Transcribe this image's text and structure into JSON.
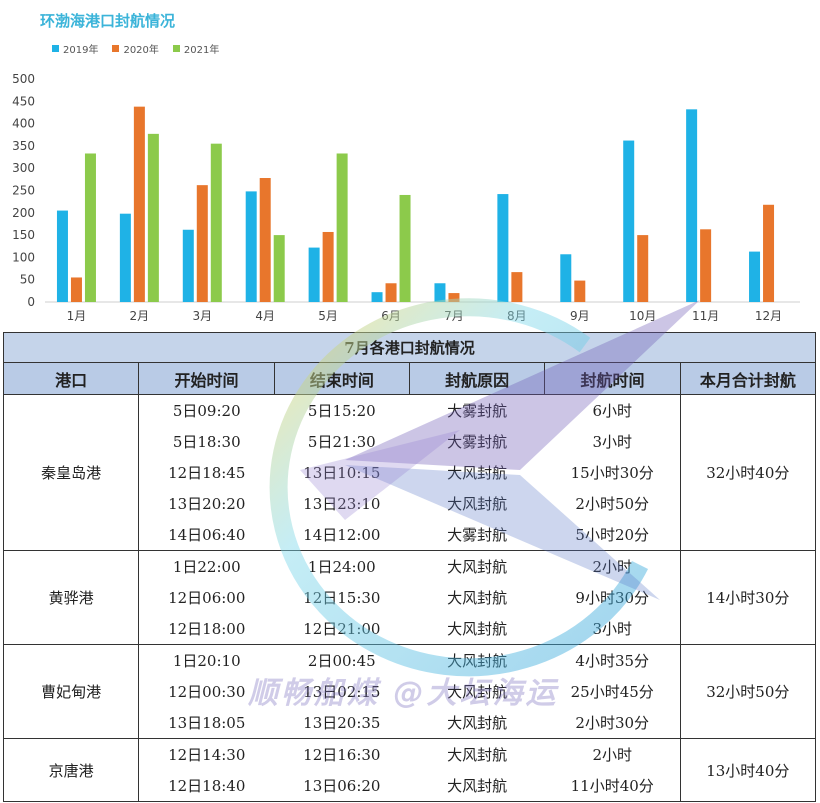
{
  "chart_data": {
    "type": "bar",
    "title": "环渤海港口封航情况",
    "categories": [
      "1月",
      "2月",
      "3月",
      "4月",
      "5月",
      "6月",
      "7月",
      "8月",
      "9月",
      "10月",
      "11月",
      "12月"
    ],
    "series": [
      {
        "name": "2019年",
        "color": "#1fb2e6",
        "values": [
          205,
          198,
          162,
          248,
          122,
          22,
          42,
          242,
          107,
          362,
          432,
          113
        ]
      },
      {
        "name": "2020年",
        "color": "#e8762c",
        "values": [
          55,
          438,
          262,
          278,
          157,
          42,
          20,
          67,
          48,
          150,
          163,
          218
        ]
      },
      {
        "name": "2021年",
        "color": "#8cca4b",
        "values": [
          333,
          377,
          355,
          150,
          333,
          240,
          null,
          null,
          null,
          null,
          null,
          null
        ]
      }
    ],
    "ylim": [
      0,
      500
    ],
    "yticks": [
      0,
      50,
      100,
      150,
      200,
      250,
      300,
      350,
      400,
      450,
      500
    ],
    "legend": "top-left",
    "xlabel": "",
    "ylabel": ""
  },
  "table": {
    "title": "7月各港口封航情况",
    "headers": [
      "港口",
      "开始时间",
      "结束时间",
      "封航原因",
      "封航时间",
      "本月合计封航"
    ],
    "groups": [
      {
        "port": "秦皇岛港",
        "total": "32小时40分",
        "rows": [
          [
            "5日09:20",
            "5日15:20",
            "大雾封航",
            "6小时"
          ],
          [
            "5日18:30",
            "5日21:30",
            "大雾封航",
            "3小时"
          ],
          [
            "12日18:45",
            "13日10:15",
            "大风封航",
            "15小时30分"
          ],
          [
            "13日20:20",
            "13日23:10",
            "大风封航",
            "2小时50分"
          ],
          [
            "14日06:40",
            "14日12:00",
            "大雾封航",
            "5小时20分"
          ]
        ]
      },
      {
        "port": "黄骅港",
        "total": "14小时30分",
        "rows": [
          [
            "1日22:00",
            "1日24:00",
            "大风封航",
            "2小时"
          ],
          [
            "12日06:00",
            "12日15:30",
            "大风封航",
            "9小时30分"
          ],
          [
            "12日18:00",
            "12日21:00",
            "大风封航",
            "3小时"
          ]
        ]
      },
      {
        "port": "曹妃甸港",
        "total": "32小时50分",
        "rows": [
          [
            "1日20:10",
            "2日00:45",
            "大风封航",
            "4小时35分"
          ],
          [
            "12日00:30",
            "13日02:15",
            "大风封航",
            "25小时45分"
          ],
          [
            "13日18:05",
            "13日20:35",
            "大风封航",
            "2小时30分"
          ]
        ]
      },
      {
        "port": "京唐港",
        "total": "13小时40分",
        "rows": [
          [
            "12日14:30",
            "12日16:30",
            "大风封航",
            "2小时"
          ],
          [
            "12日18:40",
            "13日06:20",
            "大风封航",
            "11小时40分"
          ]
        ]
      }
    ]
  },
  "watermark": "顺畅船煤 @大坛海运"
}
